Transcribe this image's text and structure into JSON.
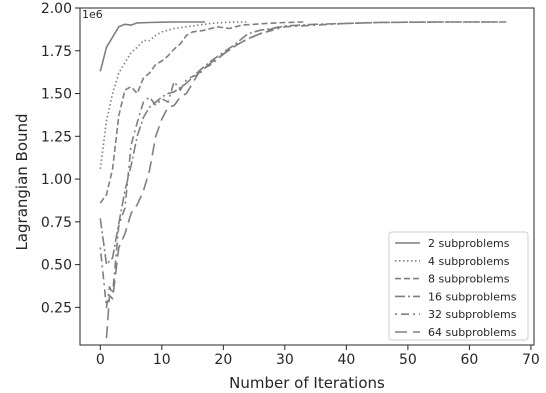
{
  "chart_data": {
    "type": "line",
    "title": "",
    "xlabel": "Number of Iterations",
    "ylabel": "Lagrangian Bound",
    "y_offset_label": "1e6",
    "xlim": [
      -3.3,
      70.5
    ],
    "ylim": [
      0.03,
      2.0
    ],
    "x_ticks": [
      0,
      10,
      20,
      30,
      40,
      50,
      60,
      70
    ],
    "y_ticks": [
      0.25,
      0.5,
      0.75,
      1.0,
      1.25,
      1.5,
      1.75,
      2.0
    ],
    "x_tick_labels": [
      "0",
      "10",
      "20",
      "30",
      "40",
      "50",
      "60",
      "70"
    ],
    "y_tick_labels": [
      "0.25",
      "0.50",
      "0.75",
      "1.00",
      "1.25",
      "1.50",
      "1.75",
      "2.00"
    ],
    "grid": false,
    "legend_position": "bottom-right",
    "series": [
      {
        "name": "2 subproblems",
        "dash": "solid",
        "color": "#7f7f7f",
        "x": [
          0,
          1,
          2,
          3,
          4,
          5,
          6,
          8,
          10,
          12,
          14,
          17
        ],
        "y": [
          1.63,
          1.77,
          1.83,
          1.89,
          1.905,
          1.9,
          1.913,
          1.915,
          1.917,
          1.918,
          1.918,
          1.918
        ]
      },
      {
        "name": "4 subproblems",
        "dash": "dotted",
        "color": "#7f7f7f",
        "x": [
          0,
          1,
          2,
          3,
          4,
          5,
          6,
          7,
          8,
          9,
          10,
          11,
          12,
          14,
          16,
          18,
          20,
          22,
          24
        ],
        "y": [
          1.06,
          1.34,
          1.5,
          1.62,
          1.68,
          1.74,
          1.77,
          1.81,
          1.81,
          1.84,
          1.86,
          1.87,
          1.88,
          1.89,
          1.9,
          1.91,
          1.915,
          1.918,
          1.918
        ]
      },
      {
        "name": "8 subproblems",
        "dash": "6,3",
        "color": "#7f7f7f",
        "x": [
          0,
          1,
          2,
          3,
          4,
          5,
          6,
          7,
          8,
          9,
          10,
          11,
          12,
          13,
          14,
          15,
          17,
          19,
          21,
          23,
          25,
          27,
          30,
          33
        ],
        "y": [
          0.86,
          0.91,
          1.06,
          1.37,
          1.52,
          1.54,
          1.5,
          1.59,
          1.62,
          1.67,
          1.69,
          1.72,
          1.76,
          1.79,
          1.84,
          1.86,
          1.87,
          1.89,
          1.88,
          1.9,
          1.905,
          1.91,
          1.915,
          1.918
        ]
      },
      {
        "name": "16 subproblems",
        "dash": "10,3,2,3",
        "color": "#7f7f7f",
        "x": [
          0,
          1,
          2,
          3,
          4,
          5,
          6,
          7,
          8,
          9,
          10,
          11,
          12,
          14,
          16,
          18,
          20,
          22,
          24,
          26,
          28,
          30,
          35,
          40,
          45,
          50,
          55,
          60,
          65
        ],
        "y": [
          0.77,
          0.5,
          0.54,
          0.74,
          0.93,
          1.08,
          1.25,
          1.36,
          1.42,
          1.45,
          1.48,
          1.5,
          1.51,
          1.56,
          1.63,
          1.69,
          1.74,
          1.79,
          1.85,
          1.87,
          1.88,
          1.895,
          1.905,
          1.91,
          1.915,
          1.917,
          1.918,
          1.918,
          1.918
        ]
      },
      {
        "name": "32 subproblems",
        "dash": "2,4,8,4",
        "color": "#7f7f7f",
        "x": [
          0,
          1,
          1.5,
          2,
          3,
          4,
          5,
          6,
          7,
          8,
          9,
          10,
          11,
          12,
          13,
          14,
          15,
          16,
          17,
          18,
          20,
          22,
          24,
          26,
          28,
          30,
          35,
          40,
          45,
          50,
          55,
          60,
          66
        ],
        "y": [
          0.6,
          0.25,
          0.37,
          0.33,
          0.73,
          0.83,
          1.2,
          1.33,
          1.45,
          1.48,
          1.43,
          1.47,
          1.45,
          1.57,
          1.52,
          1.58,
          1.6,
          1.61,
          1.65,
          1.67,
          1.73,
          1.78,
          1.82,
          1.85,
          1.87,
          1.89,
          1.9,
          1.91,
          1.915,
          1.917,
          1.918,
          1.918,
          1.918
        ]
      },
      {
        "name": "64 subproblems",
        "dash": "12,6",
        "color": "#7f7f7f",
        "x": [
          1,
          1.5,
          2,
          3,
          4,
          5,
          6,
          7,
          8,
          9,
          10,
          11,
          12,
          13,
          14,
          16,
          18,
          20,
          22,
          24,
          26,
          28,
          30
        ],
        "y": [
          0.07,
          0.32,
          0.3,
          0.6,
          0.68,
          0.8,
          0.85,
          0.93,
          1.05,
          1.25,
          1.35,
          1.42,
          1.43,
          1.48,
          1.5,
          1.62,
          1.68,
          1.73,
          1.78,
          1.82,
          1.85,
          1.88,
          1.9
        ]
      }
    ]
  }
}
